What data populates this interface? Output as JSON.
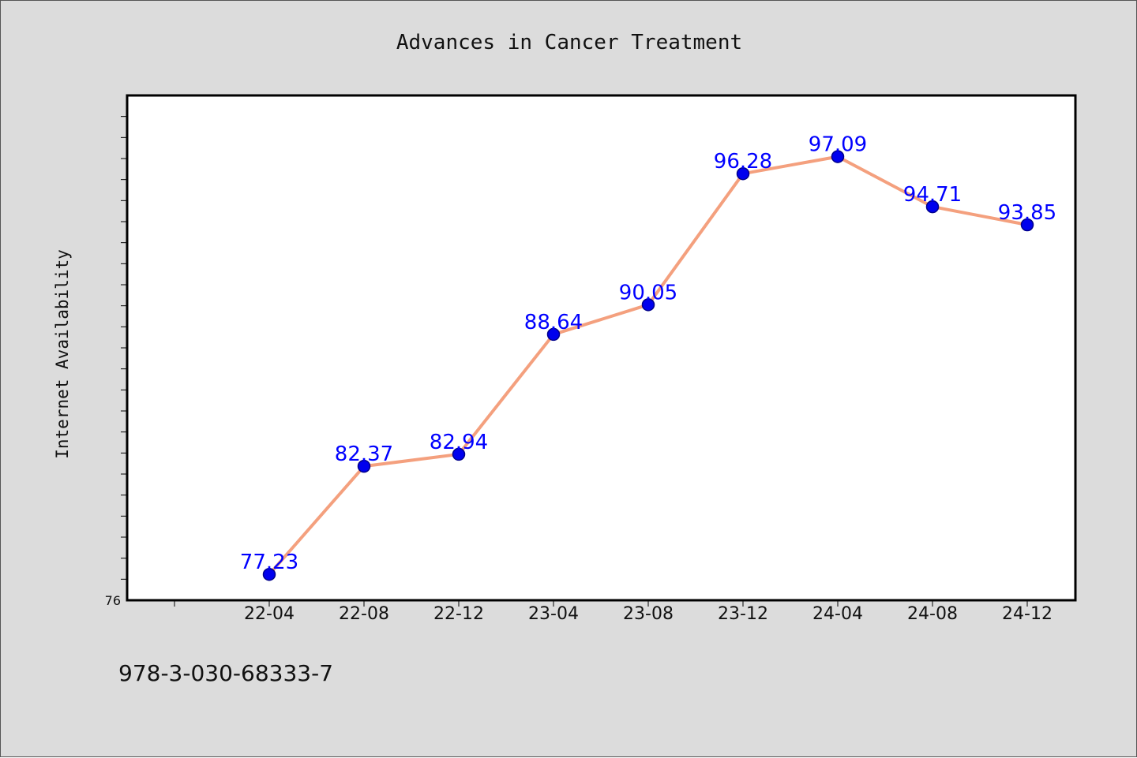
{
  "colors": {
    "figure_background": "#dcdcdc",
    "plot_background": "#ffffff",
    "line": "#f4a07e",
    "marker": "#0000ee",
    "marker_edge": "#00008b",
    "data_label": "#0000ff",
    "axes": "#000000"
  },
  "footer": {
    "isbn": "978-3-030-68333-7"
  },
  "chart_data": {
    "type": "line",
    "title": "Advances in Cancer Treatment",
    "xlabel": "",
    "ylabel": "Internet Availability",
    "categories": [
      "22-04",
      "22-08",
      "22-12",
      "23-04",
      "23-08",
      "23-12",
      "24-04",
      "24-08",
      "24-12"
    ],
    "series": [
      {
        "values": [
          77.23,
          82.37,
          82.94,
          88.64,
          90.05,
          96.28,
          97.09,
          94.71,
          93.85
        ],
        "data_labels": [
          "77.23",
          "82.37",
          "82.94",
          "88.64",
          "90.05",
          "96.28",
          "97.09",
          "94.71",
          "93.85"
        ],
        "marker": "circle"
      }
    ],
    "ylim": [
      76,
      100
    ],
    "y_tick_labels": [
      "76"
    ],
    "x_category_slots": 10,
    "grid": false,
    "legend": "none"
  }
}
